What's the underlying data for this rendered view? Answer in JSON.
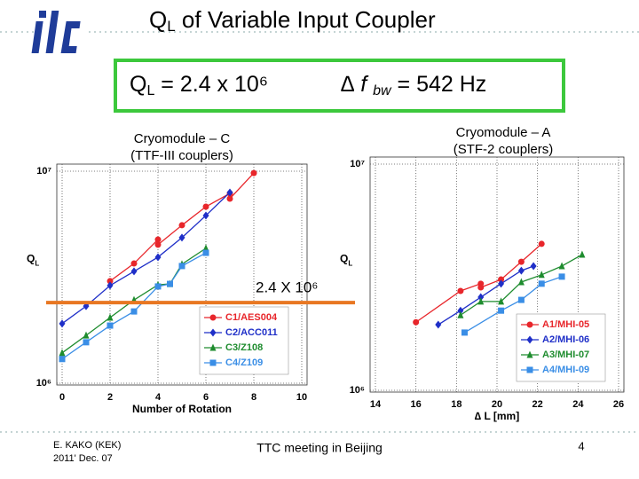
{
  "slide": {
    "title": {
      "q": "Q",
      "sub": "L",
      "rest": " of Variable Input Coupler"
    },
    "box_left": {
      "q": "Q",
      "sub": "L",
      "rest": " = 2.4 x 10⁶"
    },
    "box_right": {
      "q": "∆ f ",
      "sub": "bw",
      "rest": " = 542 Hz"
    },
    "footer_author": "E. KAKO (KEK)",
    "footer_date": "2011' Dec. 07",
    "footer_meeting": "TTC meeting in Beijing",
    "page": "4"
  },
  "chart_data": [
    {
      "type": "scatter",
      "title": "Cryomodule – C",
      "subtitle": "(TTF-III couplers)",
      "xlabel": "Number of Rotation",
      "ylabel": "Q",
      "ylabel_sub": "L",
      "xlim": [
        0,
        10
      ],
      "xticks": [
        0,
        2,
        4,
        6,
        8,
        10
      ],
      "ylim": [
        1000000,
        10000000
      ],
      "log_scale_y": true,
      "yticks": [
        {
          "value": 1000000,
          "label": "10⁶"
        },
        {
          "value": 10000000,
          "label": "10⁷"
        }
      ],
      "grid": true,
      "legend": "lower right",
      "hline": {
        "value": 2400000,
        "label": "2.4 X 10⁶",
        "color": "#e87722"
      },
      "series": [
        {
          "name": "C1/AES004",
          "color": "#e8262b",
          "marker": "circle",
          "x": [
            2,
            3,
            4,
            4,
            5,
            6,
            7,
            7,
            8
          ],
          "values": [
            3030000,
            3670000,
            4760000,
            4500000,
            5560000,
            6800000,
            7860000,
            7420000,
            9800000
          ]
        },
        {
          "name": "C2/ACC011",
          "color": "#1f2fc8",
          "marker": "diamond",
          "x": [
            0,
            1,
            2,
            3,
            4,
            5,
            6,
            7
          ],
          "values": [
            1910000,
            2310000,
            2890000,
            3370000,
            3930000,
            4860000,
            6180000,
            7940000
          ]
        },
        {
          "name": "C3/Z108",
          "color": "#1e8c2e",
          "marker": "triangle",
          "x": [
            0,
            1,
            2,
            3,
            4,
            4.5,
            5,
            6
          ],
          "values": [
            1390000,
            1680000,
            2040000,
            2470000,
            2910000,
            2940000,
            3640000,
            4330000
          ]
        },
        {
          "name": "C4/Z109",
          "color": "#3a8ee6",
          "marker": "square",
          "x": [
            0,
            1,
            2,
            3,
            4,
            4.5,
            5,
            6
          ],
          "values": [
            1300000,
            1560000,
            1870000,
            2180000,
            2860000,
            2940000,
            3570000,
            4120000
          ]
        }
      ]
    },
    {
      "type": "scatter",
      "title": "Cryomodule – A",
      "subtitle": "(STF-2 couplers)",
      "xlabel": "∆ L  [mm]",
      "ylabel": "Q",
      "ylabel_sub": "L",
      "xlim": [
        14,
        26
      ],
      "xticks": [
        14,
        16,
        18,
        20,
        22,
        24,
        26
      ],
      "ylim": [
        1000000,
        10000000
      ],
      "log_scale_y": true,
      "yticks": [
        {
          "value": 1000000,
          "label": "10⁶"
        },
        {
          "value": 10000000,
          "label": "10⁷"
        }
      ],
      "grid": true,
      "legend": "lower right",
      "series": [
        {
          "name": "A1/MHI-05",
          "color": "#e8262b",
          "marker": "circle",
          "x": [
            16,
            18.2,
            19.2,
            19.2,
            20.2,
            21.2,
            22.2
          ],
          "values": [
            2000000,
            2750000,
            2960000,
            2850000,
            3090000,
            3700000,
            4440000
          ]
        },
        {
          "name": "A2/MHI-06",
          "color": "#1f2fc8",
          "marker": "diamond",
          "x": [
            17.1,
            18.2,
            19.2,
            20.2,
            21.2,
            21.8
          ],
          "values": [
            1950000,
            2250000,
            2580000,
            2960000,
            3380000,
            3540000
          ]
        },
        {
          "name": "A3/MHI-07",
          "color": "#1e8c2e",
          "marker": "triangle",
          "x": [
            18.2,
            19.2,
            20.2,
            21.2,
            22.2,
            23.2,
            24.2
          ],
          "values": [
            2150000,
            2470000,
            2470000,
            3010000,
            3240000,
            3540000,
            3980000
          ]
        },
        {
          "name": "A4/MHI-09",
          "color": "#3a8ee6",
          "marker": "square",
          "x": [
            18.4,
            20.2,
            21.2,
            22.2,
            23.2
          ],
          "values": [
            1800000,
            2250000,
            2510000,
            2960000,
            3180000
          ]
        }
      ]
    }
  ]
}
